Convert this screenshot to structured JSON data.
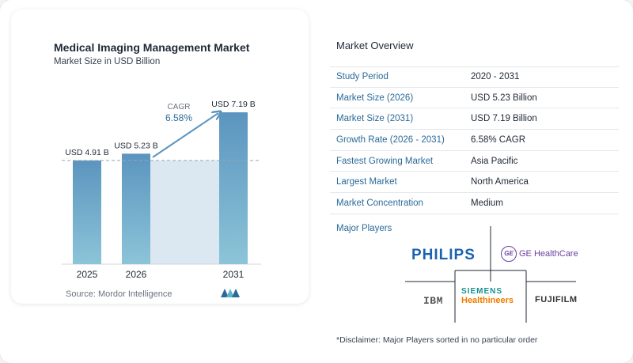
{
  "chart_data": {
    "type": "bar",
    "title": "Medical Imaging Management Market",
    "subtitle": "Market Size in USD Billion",
    "categories": [
      "2025",
      "2026",
      "2031"
    ],
    "values": [
      4.91,
      5.23,
      7.19
    ],
    "value_labels": [
      "USD 4.91 B",
      "USD 5.23 B",
      "USD 7.19 B"
    ],
    "cagr_label": "CAGR",
    "cagr_value": "6.58%",
    "bar_color": "#5b95bf",
    "bar_color_light": "#8cc4d8",
    "shade_color": "#dbe8f2",
    "source": "Source:  Mordor Intelligence"
  },
  "overview": {
    "title": "Market Overview",
    "rows": [
      {
        "label": "Study Period",
        "value": "2020 - 2031"
      },
      {
        "label": "Market Size (2026)",
        "value": "USD 5.23 Billion"
      },
      {
        "label": "Market Size (2031)",
        "value": "USD 7.19 Billion"
      },
      {
        "label": "Growth Rate (2026 - 2031)",
        "value": "6.58% CAGR"
      },
      {
        "label": "Fastest Growing Market",
        "value": "Asia Pacific"
      },
      {
        "label": "Largest Market",
        "value": "North America"
      },
      {
        "label": "Market Concentration",
        "value": "Medium"
      }
    ]
  },
  "players": {
    "title": "Major Players",
    "philips": "PHILIPS",
    "ge_mark": "GE",
    "ge": "GE HealthCare",
    "ibm": "IBM",
    "siemens_top": "SIEMENS",
    "siemens_bottom": "Healthineers",
    "fujifilm": "FUJIFILM"
  },
  "disclaimer": "*Disclaimer: Major Players sorted in no particular order",
  "colors": {
    "accent": "#2b6a98",
    "arrow": "#5b95bf"
  }
}
